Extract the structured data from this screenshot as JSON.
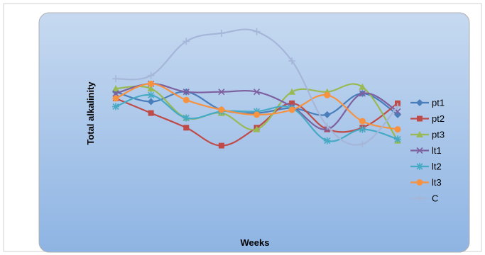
{
  "chart_data": {
    "type": "line",
    "title": "",
    "xlabel": "Weeks",
    "ylabel": "Total alkalinity",
    "x": [
      1,
      2,
      3,
      4,
      5,
      6,
      7,
      8,
      9
    ],
    "ylim": [
      0,
      10
    ],
    "grid": false,
    "legend": "right",
    "background_gradient": [
      "#c6d9f0",
      "#8eb4e3"
    ],
    "series": [
      {
        "name": "pt1",
        "color": "#4a7ebb",
        "marker": "diamond",
        "values": [
          6.1,
          5.5,
          6.1,
          5.0,
          4.8,
          5.1,
          4.7,
          6.0,
          4.7
        ]
      },
      {
        "name": "pt2",
        "color": "#be4b48",
        "marker": "square",
        "values": [
          5.7,
          4.8,
          3.9,
          2.8,
          3.9,
          5.4,
          3.8,
          3.9,
          5.4
        ]
      },
      {
        "name": "pt3",
        "color": "#98b954",
        "marker": "triangle",
        "values": [
          6.3,
          6.3,
          4.5,
          4.8,
          3.8,
          6.1,
          6.1,
          6.4,
          3.1
        ]
      },
      {
        "name": "lt1",
        "color": "#7d60a0",
        "marker": "x",
        "values": [
          6.0,
          6.6,
          6.1,
          6.1,
          6.1,
          5.2,
          3.8,
          6.0,
          4.9
        ]
      },
      {
        "name": "lt2",
        "color": "#46aac5",
        "marker": "star",
        "values": [
          5.2,
          5.9,
          4.5,
          4.9,
          4.9,
          5.1,
          3.1,
          3.8,
          3.2
        ]
      },
      {
        "name": "lt3",
        "color": "#f69240",
        "marker": "circle",
        "values": [
          5.7,
          6.6,
          5.6,
          5.0,
          4.7,
          5.0,
          5.9,
          4.3,
          3.8
        ]
      },
      {
        "name": "C",
        "color": "#a5b6d9",
        "marker": "plus",
        "values": [
          6.9,
          7.1,
          9.2,
          9.7,
          9.8,
          8.0,
          4.0,
          2.9,
          5.2
        ]
      }
    ]
  }
}
